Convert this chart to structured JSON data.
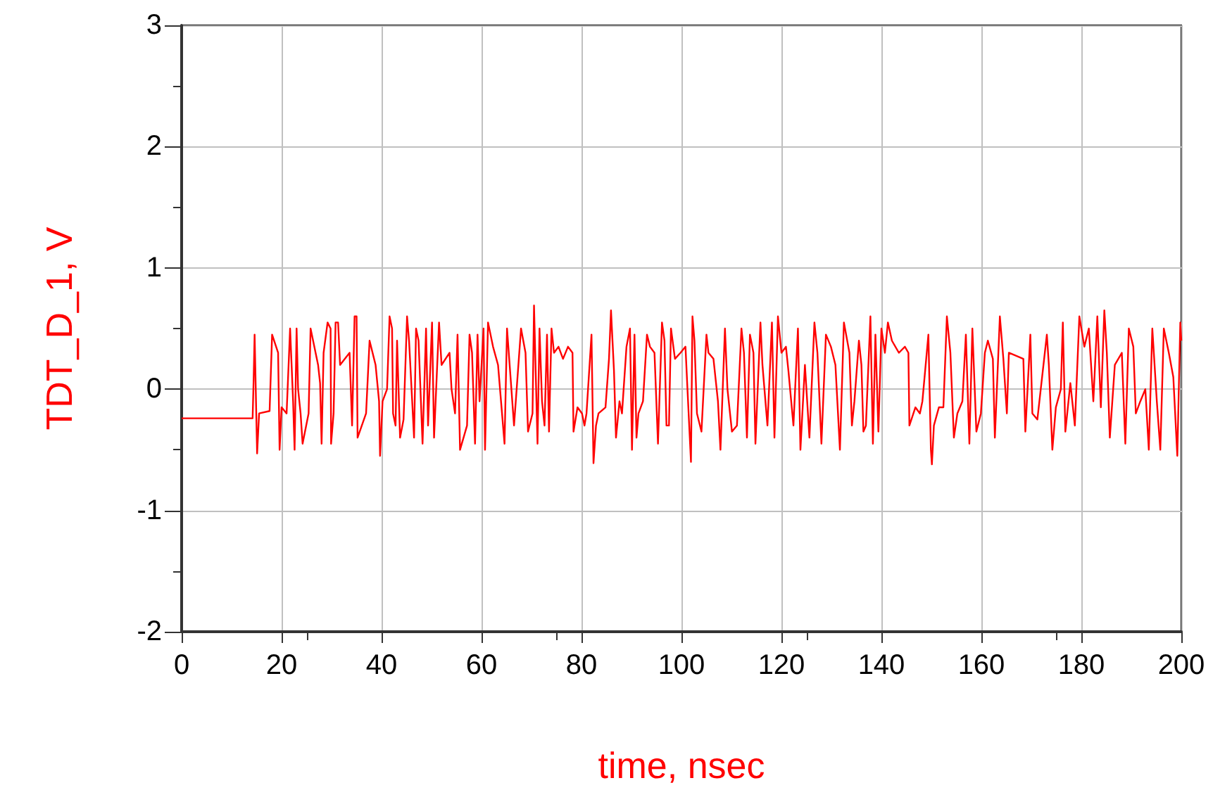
{
  "chart_data": {
    "type": "line",
    "xlabel": "time, nsec",
    "ylabel": "TDT_D_1, V",
    "xlim": [
      0,
      200
    ],
    "xticks": [
      0,
      20,
      40,
      60,
      80,
      100,
      120,
      140,
      160,
      180,
      200
    ],
    "ylim": [
      -2,
      3
    ],
    "yticks": [
      -2,
      -1,
      0,
      1,
      2,
      3
    ],
    "grid": true,
    "marker": "none",
    "line_style": "solid",
    "series": [
      {
        "color": "#ff0000",
        "x": [
          0,
          14.2,
          14.4,
          14.6,
          15.1,
          15.5,
          17.6,
          18.1,
          19.3,
          19.6,
          20,
          21,
          21.7,
          22.3,
          22.6,
          23,
          23.3,
          23.8,
          24.2,
          25.4,
          25.8,
          27.3,
          27.7,
          28,
          28.4,
          29.2,
          29.8,
          29.9,
          30.4,
          30.8,
          31.3,
          31.7,
          33.6,
          34.1,
          34.6,
          35,
          35.2,
          36.9,
          37.6,
          38.8,
          39.5,
          39.7,
          40.2,
          41.1,
          41.6,
          42.1,
          42.3,
          42.8,
          43.1,
          43.7,
          44.4,
          45.1,
          45.5,
          46,
          46.5,
          46.9,
          47.4,
          48.2,
          48.9,
          49.3,
          50.1,
          50.5,
          51.5,
          52,
          53.6,
          54,
          54.7,
          55.2,
          55.7,
          57.1,
          57.6,
          58.1,
          58.7,
          59.2,
          59.6,
          60.4,
          60.7,
          61.3,
          62.3,
          63.3,
          64.6,
          65.1,
          66.5,
          67.9,
          68.8,
          69.3,
          70.2,
          70.5,
          71.2,
          71.6,
          72.1,
          72.6,
          73.1,
          73.5,
          74,
          74.5,
          75.4,
          76.3,
          77.3,
          78.2,
          78.4,
          79.2,
          80.1,
          80.6,
          81,
          82,
          82.4,
          82.9,
          83.4,
          84.8,
          85.5,
          85.9,
          86.5,
          86.9,
          87.6,
          88.1,
          89,
          89.7,
          90.1,
          90.6,
          91,
          91.4,
          92.3,
          93.1,
          93.7,
          94.6,
          95.3,
          96.1,
          96.6,
          97,
          97.5,
          97.9,
          98.7,
          99.8,
          100.8,
          101.2,
          101.9,
          102.2,
          102.6,
          103.1,
          104,
          105,
          105.4,
          106.4,
          107.3,
          107.8,
          108.7,
          109.2,
          110.1,
          111.1,
          112,
          112.5,
          113.1,
          113.7,
          114.4,
          114.8,
          115.8,
          116.2,
          117.2,
          118.1,
          118.6,
          119.3,
          120,
          120.9,
          121.4,
          122.4,
          123.3,
          123.8,
          124.7,
          125.6,
          126.6,
          127.2,
          128,
          128.9,
          129.9,
          130.8,
          131.7,
          132.5,
          133.6,
          134.1,
          134.6,
          135.5,
          136,
          136.4,
          136.9,
          137.8,
          138.3,
          138.8,
          139.4,
          140,
          140.7,
          141.3,
          142.1,
          143.5,
          144.7,
          145.4,
          145.6,
          146.8,
          147.7,
          148.2,
          149.4,
          149.9,
          150.1,
          150.5,
          151.5,
          152.4,
          153.1,
          153.8,
          154.5,
          155.2,
          156.2,
          156.9,
          157.6,
          158.2,
          159,
          159.9,
          160.7,
          161.3,
          162.3,
          162.7,
          163.7,
          164.4,
          165.1,
          165.5,
          168.4,
          168.8,
          169.8,
          170.2,
          171.2,
          173.1,
          173.5,
          174.2,
          174.9,
          175.9,
          176.3,
          176.8,
          177.8,
          178.7,
          179.6,
          180.6,
          181.5,
          182.4,
          183.2,
          183.9,
          184.6,
          185.1,
          185.7,
          186.7,
          188.1,
          188.8,
          189.5,
          190.4,
          190.9,
          191.8,
          192.8,
          193.5,
          194.2,
          195.1,
          195.8,
          196.5,
          197.5,
          198.4,
          199.2,
          199.8,
          200
        ],
        "values": [
          -0.24,
          -0.24,
          0.07,
          0.45,
          -0.53,
          -0.2,
          -0.18,
          0.45,
          0.3,
          -0.5,
          -0.15,
          -0.2,
          0.5,
          -0.1,
          -0.5,
          0.5,
          0,
          -0.2,
          -0.45,
          -0.2,
          0.5,
          0.2,
          0.05,
          -0.45,
          0.3,
          0.55,
          0.5,
          -0.45,
          -0.2,
          0.55,
          0.55,
          0.2,
          0.3,
          -0.3,
          0.6,
          0.6,
          -0.4,
          -0.2,
          0.4,
          0.2,
          -0.1,
          -0.55,
          -0.1,
          0,
          0.6,
          0.5,
          -0.2,
          -0.3,
          0.4,
          -0.4,
          -0.25,
          0.6,
          0.4,
          0,
          -0.4,
          0.5,
          0.4,
          -0.45,
          0.5,
          -0.3,
          0.55,
          -0.4,
          0.55,
          0.2,
          0.3,
          0,
          -0.2,
          0.45,
          -0.5,
          -0.3,
          0.45,
          0.3,
          -0.45,
          0.45,
          -0.1,
          0.5,
          -0.5,
          0.55,
          0.35,
          0.2,
          -0.45,
          0.5,
          -0.3,
          0.5,
          0.3,
          -0.35,
          -0.2,
          0.69,
          -0.45,
          0.5,
          -0.1,
          -0.3,
          0.45,
          -0.35,
          0.5,
          0.3,
          0.35,
          0.25,
          0.35,
          0.3,
          -0.35,
          -0.15,
          -0.2,
          -0.3,
          -0.2,
          0.45,
          -0.61,
          -0.3,
          -0.2,
          -0.15,
          0.25,
          0.65,
          0.15,
          -0.4,
          -0.1,
          -0.2,
          0.35,
          0.5,
          -0.5,
          0.45,
          -0.4,
          -0.2,
          -0.1,
          0.45,
          0.35,
          0.3,
          -0.45,
          0.55,
          0.4,
          -0.3,
          -0.3,
          0.5,
          0.25,
          0.3,
          0.35,
          0,
          -0.6,
          0.6,
          0.4,
          -0.2,
          -0.35,
          0.45,
          0.3,
          0.25,
          -0.1,
          -0.5,
          0.5,
          0,
          -0.35,
          -0.3,
          0.5,
          0.3,
          -0.4,
          0.45,
          0.3,
          -0.45,
          0.55,
          0.2,
          -0.3,
          0.55,
          -0.4,
          0.6,
          0.3,
          0.35,
          0.15,
          -0.3,
          0.5,
          -0.5,
          0.2,
          -0.4,
          0.55,
          0.3,
          -0.45,
          0.45,
          0.35,
          0.2,
          -0.5,
          0.55,
          0.3,
          -0.3,
          -0.1,
          0.4,
          0.2,
          -0.35,
          -0.3,
          0.6,
          -0.45,
          0.45,
          -0.35,
          0.5,
          0.3,
          0.55,
          0.4,
          0.3,
          0.35,
          0.3,
          -0.3,
          -0.15,
          -0.2,
          -0.1,
          0.45,
          -0.5,
          -0.62,
          -0.3,
          -0.15,
          -0.15,
          0.6,
          0.3,
          -0.4,
          -0.2,
          -0.1,
          0.45,
          -0.45,
          0.5,
          -0.35,
          -0.2,
          0.3,
          0.4,
          0.25,
          -0.4,
          0.6,
          0.25,
          -0.2,
          0.3,
          0.25,
          -0.35,
          0.45,
          -0.2,
          -0.25,
          0.45,
          0.2,
          -0.5,
          -0.15,
          0,
          0.55,
          -0.35,
          0.05,
          -0.3,
          0.6,
          0.35,
          0.5,
          -0.1,
          0.6,
          -0.15,
          0.65,
          0.3,
          -0.4,
          0.2,
          0.3,
          -0.45,
          0.5,
          0.35,
          -0.2,
          -0.1,
          0,
          -0.5,
          0.5,
          -0.1,
          -0.5,
          0.5,
          0.3,
          0.1,
          -0.55,
          0.55,
          0.4
        ]
      }
    ]
  }
}
